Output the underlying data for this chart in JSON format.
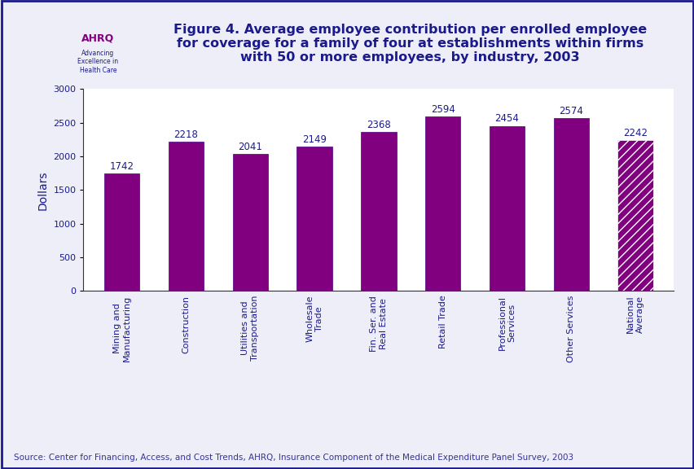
{
  "categories": [
    "Mining and\nManufacturing",
    "Construction",
    "Utilities and\nTransportation",
    "Wholesale\nTrade",
    "Fin. Ser. and\nReal Estate",
    "Retail Trade",
    "Professional\nServices",
    "Other Services",
    "National\nAverage"
  ],
  "values": [
    1742,
    2218,
    2041,
    2149,
    2368,
    2594,
    2454,
    2574,
    2242
  ],
  "bar_color": "#800080",
  "hatched_bar_index": 8,
  "hatch_pattern": "///",
  "hatch_facecolor": "#800080",
  "hatch_edgecolor": "#ffffff",
  "title_line1": "Figure 4. Average employee contribution per enrolled employee",
  "title_line2": "for coverage for a family of four at establishments within firms",
  "title_line3": "with 50 or more employees, by industry, 2003",
  "ylabel": "Dollars",
  "ylim": [
    0,
    3000
  ],
  "yticks": [
    0,
    500,
    1000,
    1500,
    2000,
    2500,
    3000
  ],
  "source_text": "Source: Center for Financing, Access, and Cost Trends, AHRQ, Insurance Component of the Medical Expenditure Panel Survey, 2003",
  "outer_bg_color": "#eeeef8",
  "plot_bg_color": "#ffffff",
  "title_color": "#1a1a8c",
  "title_fontsize": 11.5,
  "label_fontsize": 8,
  "value_fontsize": 8.5,
  "ylabel_fontsize": 10,
  "source_fontsize": 7.5,
  "bar_edge_color": "#4b0082",
  "axis_color": "#333333",
  "tick_label_color": "#1a1a8c",
  "separator_color": "#1a1a8c",
  "border_color": "#1a1a8c"
}
